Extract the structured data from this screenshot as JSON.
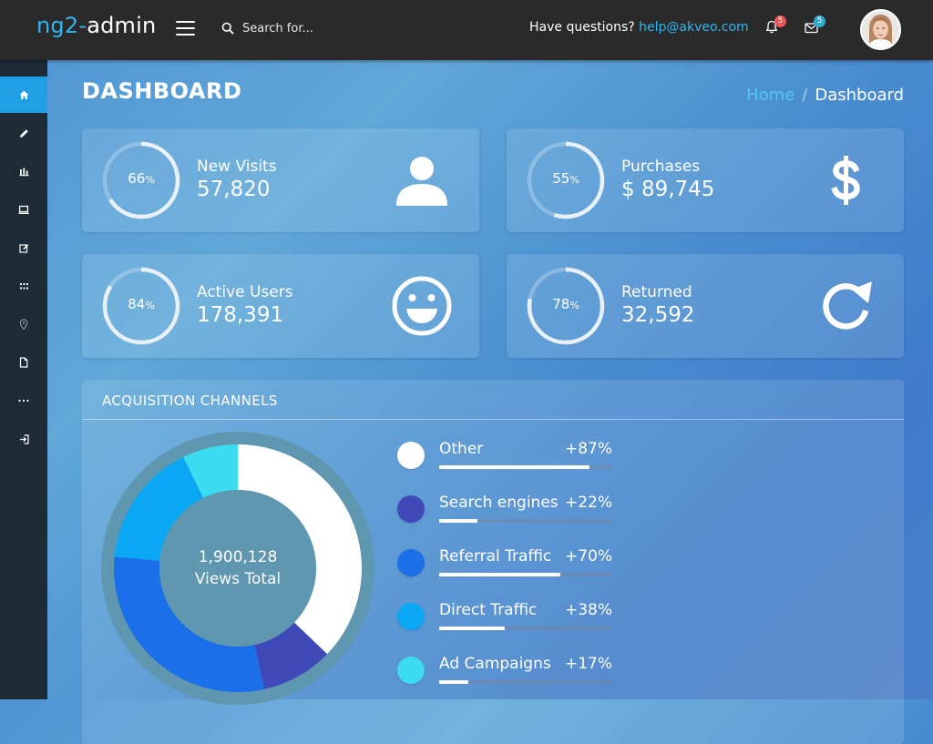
{
  "app": {
    "logo_prefix": "ng2-",
    "logo_suffix": "admin"
  },
  "header": {
    "search_placeholder": "Search for...",
    "questions_text": "Have questions?",
    "help_email": "help@akveo.com",
    "notifications_count": "5",
    "messages_count": "5"
  },
  "sidebar": {
    "items": [
      {
        "icon": "home-icon",
        "active": true
      },
      {
        "icon": "pencil-icon",
        "active": false
      },
      {
        "icon": "bar-chart-icon",
        "active": false
      },
      {
        "icon": "laptop-icon",
        "active": false
      },
      {
        "icon": "edit-icon",
        "active": false
      },
      {
        "icon": "grid-icon",
        "active": false
      },
      {
        "icon": "map-marker-icon",
        "active": false
      },
      {
        "icon": "document-icon",
        "active": false
      },
      {
        "icon": "more-icon",
        "active": false
      },
      {
        "icon": "sign-in-icon",
        "active": false
      }
    ]
  },
  "page": {
    "title": "DASHBOARD",
    "breadcrumb_home": "Home",
    "breadcrumb_sep": "/",
    "breadcrumb_current": "Dashboard"
  },
  "stats": [
    {
      "label": "New Visits",
      "value": "57,820",
      "percent": "66",
      "percent_sign": "%",
      "icon": "person-icon"
    },
    {
      "label": "Purchases",
      "value": "$ 89,745",
      "percent": "55",
      "percent_sign": "%",
      "icon": "dollar-icon"
    },
    {
      "label": "Active Users",
      "value": "178,391",
      "percent": "84",
      "percent_sign": "%",
      "icon": "smiley-icon"
    },
    {
      "label": "Returned",
      "value": "32,592",
      "percent": "78",
      "percent_sign": "%",
      "icon": "refresh-icon"
    }
  ],
  "acquisition": {
    "title": "ACQUISITION CHANNELS",
    "total_value": "1,900,128",
    "total_label": "Views Total",
    "channels": [
      {
        "label": "Other",
        "value": "+87%",
        "percent": 87,
        "color": "#ffffff"
      },
      {
        "label": "Search engines",
        "value": "+22%",
        "percent": 22,
        "color": "#3f4ab8"
      },
      {
        "label": "Referral Traffic",
        "value": "+70%",
        "percent": 70,
        "color": "#1b6fe8"
      },
      {
        "label": "Direct Traffic",
        "value": "+38%",
        "percent": 38,
        "color": "#0aa7f5"
      },
      {
        "label": "Ad Campaigns",
        "value": "+17%",
        "percent": 17,
        "color": "#3cdcf0"
      }
    ]
  },
  "colors": {
    "accent": "#2eb6f2",
    "topbar": "#2a2a2a",
    "sidebar": "#1c2b36",
    "sidebar_active": "#209ee6",
    "badge_notifications": "#e85656",
    "badge_messages": "#2dacd1"
  }
}
